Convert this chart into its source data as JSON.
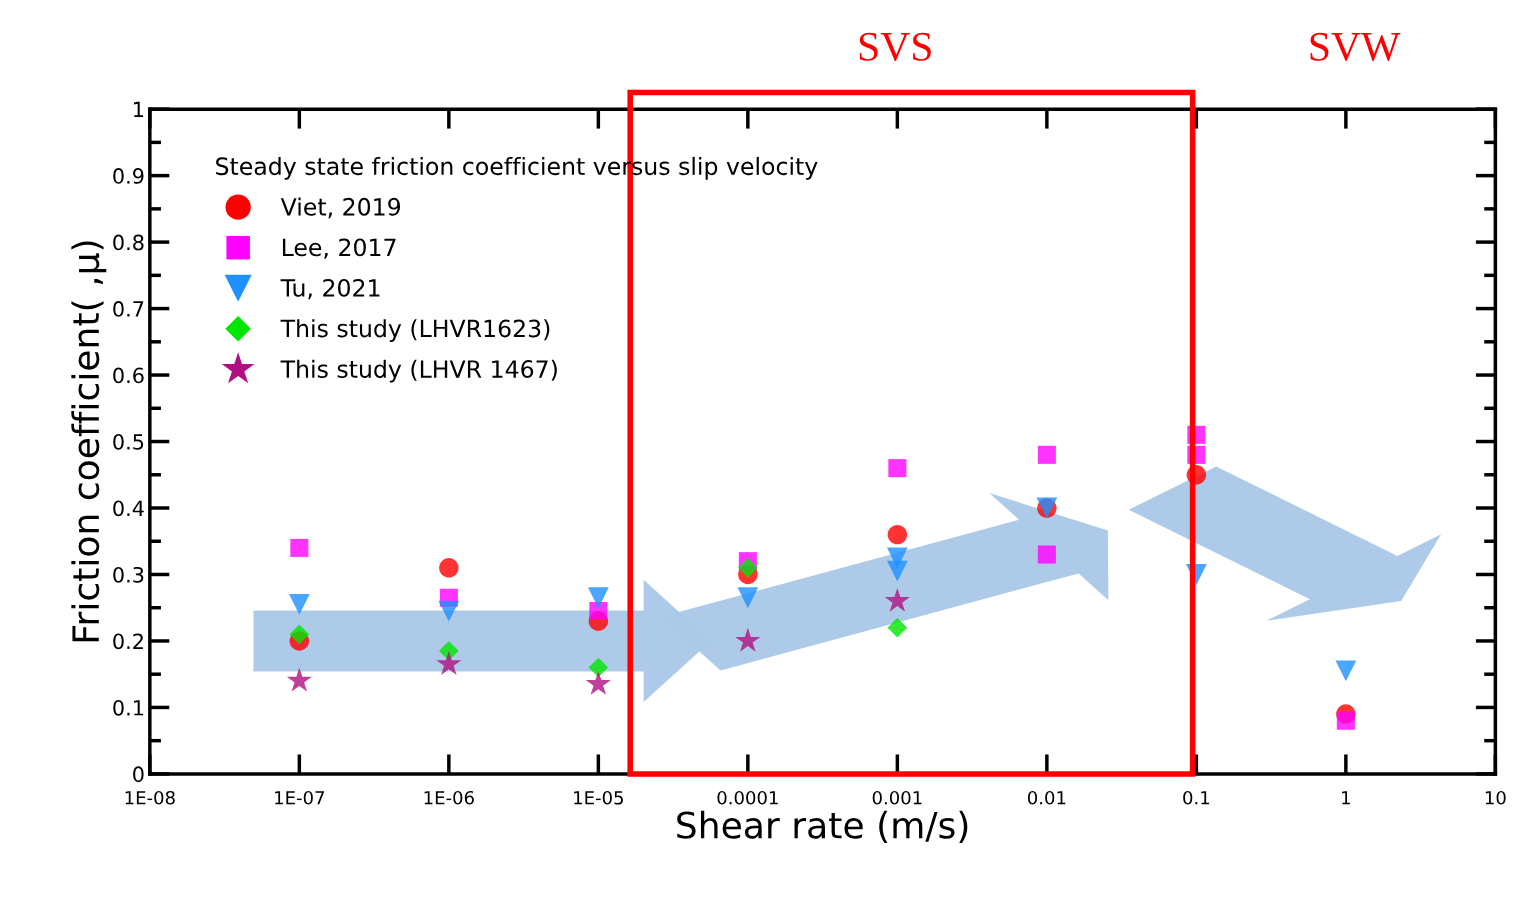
{
  "chart_data": {
    "type": "scatter",
    "xlabel": "Shear rate (m/s)",
    "ylabel": "Friction coefficient( ,μ)",
    "legend_title": "Steady state friction coefficient versus slip velocity",
    "log": "x",
    "legend": "top left",
    "grid": false,
    "xlim": [
      1e-08,
      10
    ],
    "ylim": [
      0,
      1
    ],
    "xticks": [
      {
        "value": 1e-08,
        "label": "1E-08"
      },
      {
        "value": 1e-07,
        "label": "1E-07"
      },
      {
        "value": 1e-06,
        "label": "1E-06"
      },
      {
        "value": 1e-05,
        "label": "1E-05"
      },
      {
        "value": 0.0001,
        "label": "0.0001"
      },
      {
        "value": 0.001,
        "label": "0.001"
      },
      {
        "value": 0.01,
        "label": "0.01"
      },
      {
        "value": 0.1,
        "label": "0.1"
      },
      {
        "value": 1,
        "label": "1"
      },
      {
        "value": 10,
        "label": "10"
      }
    ],
    "yticks": [
      0,
      0.1,
      0.2,
      0.3,
      0.4,
      0.5,
      0.6,
      0.7,
      0.8,
      0.9,
      1
    ],
    "annotations": [
      "SVS",
      "SVW"
    ],
    "series": [
      {
        "name": "Viet, 2019",
        "color": "#ff0000",
        "marker": "circle",
        "x": [
          1e-07,
          1e-06,
          1e-05,
          0.0001,
          0.001,
          0.01,
          0.1,
          1
        ],
        "values": [
          0.2,
          0.31,
          0.23,
          0.3,
          0.36,
          0.4,
          0.45,
          0.09
        ]
      },
      {
        "name": "Lee, 2017",
        "color": "#ff00ff",
        "marker": "square",
        "x": [
          1e-07,
          1e-06,
          1e-05,
          0.0001,
          0.001,
          0.01,
          0.01,
          0.1,
          0.1,
          1
        ],
        "values": [
          0.34,
          0.265,
          0.245,
          0.32,
          0.46,
          0.48,
          0.33,
          0.51,
          0.48,
          0.08
        ]
      },
      {
        "name": "Tu, 2021",
        "color": "#1e90ff",
        "marker": "triangle",
        "x": [
          1e-07,
          1e-06,
          1e-05,
          0.0001,
          0.001,
          0.001,
          0.01,
          0.1,
          1
        ],
        "values": [
          0.255,
          0.245,
          0.265,
          0.265,
          0.325,
          0.305,
          0.4,
          0.3,
          0.155
        ]
      },
      {
        "name": "This study (LHVR1623)",
        "color": "#00e600",
        "marker": "diamond",
        "x": [
          1e-07,
          1e-06,
          1e-05,
          0.0001,
          0.001
        ],
        "values": [
          0.21,
          0.185,
          0.16,
          0.31,
          0.22
        ]
      },
      {
        "name": "This study (LHVR 1467)",
        "color": "#b0107f",
        "marker": "star",
        "x": [
          1e-07,
          1e-06,
          1e-05,
          0.0001,
          0.001
        ],
        "values": [
          0.14,
          0.165,
          0.135,
          0.2,
          0.26
        ]
      }
    ]
  }
}
